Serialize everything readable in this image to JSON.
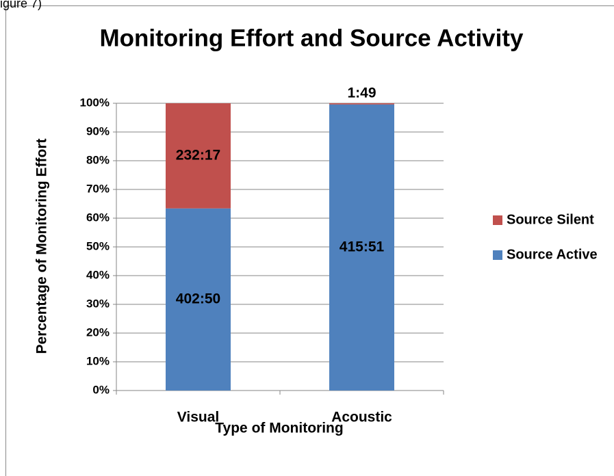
{
  "caption": "igure 7)",
  "chart_data": {
    "type": "bar",
    "stacked": true,
    "title": "Monitoring Effort and Source Activity",
    "xlabel": "Type of Monitoring",
    "ylabel": "Percentage of Monitoring Effort",
    "categories": [
      "Visual",
      "Acoustic"
    ],
    "series": [
      {
        "name": "Source Active",
        "color": "#4f81bd",
        "values": [
          63.4,
          99.6
        ],
        "value_labels": [
          "402:50",
          "415:51"
        ]
      },
      {
        "name": "Source Silent",
        "color": "#c0504d",
        "values": [
          36.6,
          0.4
        ],
        "value_labels": [
          "232:17",
          "1:49"
        ]
      }
    ],
    "ylim": [
      0,
      100
    ],
    "yticks": [
      {
        "value": 0,
        "label": "0%"
      },
      {
        "value": 10,
        "label": "10%"
      },
      {
        "value": 20,
        "label": "20%"
      },
      {
        "value": 30,
        "label": "30%"
      },
      {
        "value": 40,
        "label": "40%"
      },
      {
        "value": 50,
        "label": "50%"
      },
      {
        "value": 60,
        "label": "60%"
      },
      {
        "value": 70,
        "label": "70%"
      },
      {
        "value": 80,
        "label": "80%"
      },
      {
        "value": 90,
        "label": "90%"
      },
      {
        "value": 100,
        "label": "100%"
      }
    ],
    "grid": true,
    "legend": "right"
  }
}
